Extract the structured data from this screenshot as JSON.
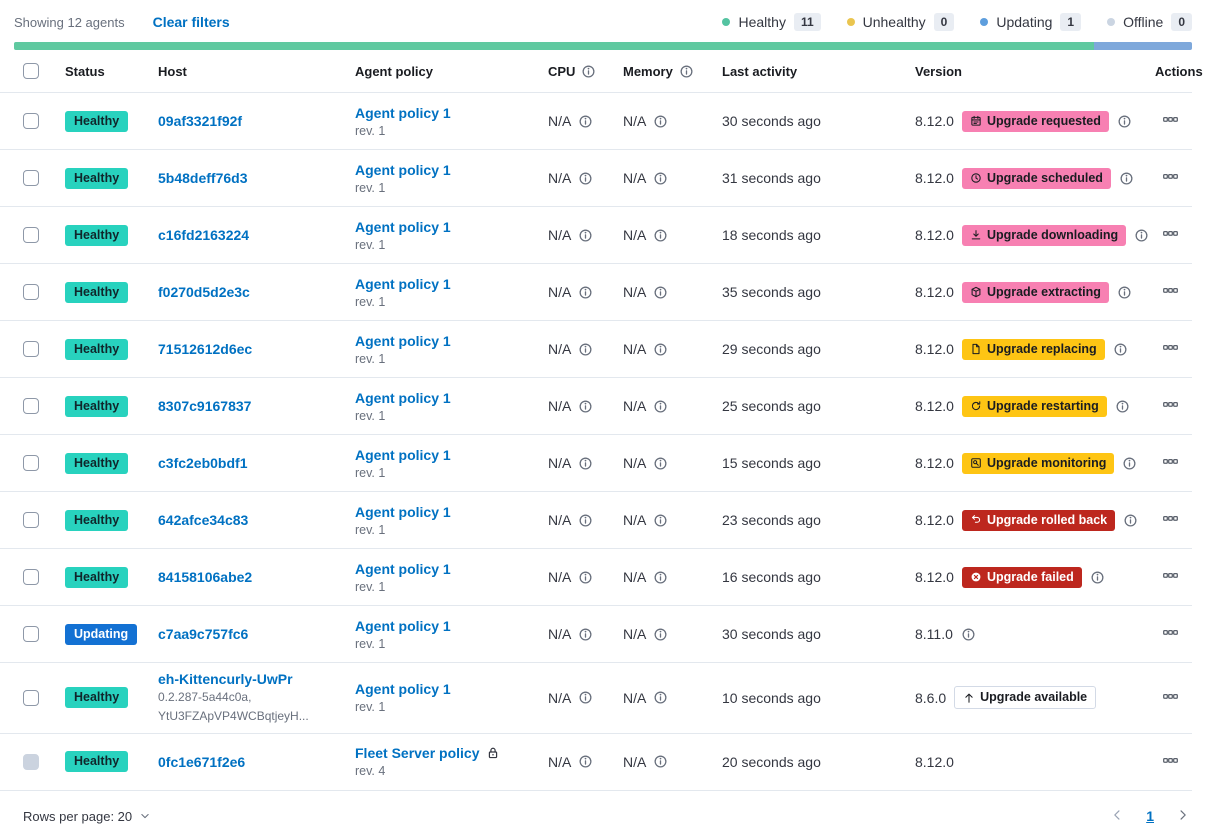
{
  "toolbar": {
    "showing": "Showing 12 agents",
    "clear_filters": "Clear filters",
    "legend": [
      {
        "label": "Healthy",
        "count": "11",
        "color": "#54C3A1"
      },
      {
        "label": "Unhealthy",
        "count": "0",
        "color": "#EAC54F"
      },
      {
        "label": "Updating",
        "count": "1",
        "color": "#5E9EDD"
      },
      {
        "label": "Offline",
        "count": "0",
        "color": "#CBD5E2"
      }
    ]
  },
  "healthbar": {
    "segments": [
      {
        "status": "healthy",
        "color": "#5FC9A0",
        "fraction": 0.917
      },
      {
        "status": "updating",
        "color": "#7EA8DB",
        "fraction": 0.083
      }
    ]
  },
  "table": {
    "headers": {
      "status": "Status",
      "host": "Host",
      "policy": "Agent policy",
      "cpu": "CPU",
      "memory": "Memory",
      "last_activity": "Last activity",
      "version": "Version",
      "actions": "Actions"
    },
    "rows": [
      {
        "status": "Healthy",
        "status_variant": "healthy",
        "host": "09af3321f92f",
        "host_sub": [],
        "policy": "Agent policy 1",
        "policy_rev": "rev. 1",
        "policy_locked": false,
        "cpu": "N/A",
        "memory": "N/A",
        "last_activity": "30 seconds ago",
        "version": "8.12.0",
        "version_info": false,
        "checkbox_disabled": false,
        "upgrade": {
          "label": "Upgrade requested",
          "variant": "accent",
          "icon": "calendar-icon",
          "info": true
        }
      },
      {
        "status": "Healthy",
        "status_variant": "healthy",
        "host": "5b48deff76d3",
        "host_sub": [],
        "policy": "Agent policy 1",
        "policy_rev": "rev. 1",
        "policy_locked": false,
        "cpu": "N/A",
        "memory": "N/A",
        "last_activity": "31 seconds ago",
        "version": "8.12.0",
        "version_info": false,
        "checkbox_disabled": false,
        "upgrade": {
          "label": "Upgrade scheduled",
          "variant": "accent",
          "icon": "clock-icon",
          "info": true
        }
      },
      {
        "status": "Healthy",
        "status_variant": "healthy",
        "host": "c16fd2163224",
        "host_sub": [],
        "policy": "Agent policy 1",
        "policy_rev": "rev. 1",
        "policy_locked": false,
        "cpu": "N/A",
        "memory": "N/A",
        "last_activity": "18 seconds ago",
        "version": "8.12.0",
        "version_info": false,
        "checkbox_disabled": false,
        "upgrade": {
          "label": "Upgrade downloading",
          "variant": "accent",
          "icon": "download-icon",
          "info": true
        }
      },
      {
        "status": "Healthy",
        "status_variant": "healthy",
        "host": "f0270d5d2e3c",
        "host_sub": [],
        "policy": "Agent policy 1",
        "policy_rev": "rev. 1",
        "policy_locked": false,
        "cpu": "N/A",
        "memory": "N/A",
        "last_activity": "35 seconds ago",
        "version": "8.12.0",
        "version_info": false,
        "checkbox_disabled": false,
        "upgrade": {
          "label": "Upgrade extracting",
          "variant": "accent",
          "icon": "package-icon",
          "info": true
        }
      },
      {
        "status": "Healthy",
        "status_variant": "healthy",
        "host": "71512612d6ec",
        "host_sub": [],
        "policy": "Agent policy 1",
        "policy_rev": "rev. 1",
        "policy_locked": false,
        "cpu": "N/A",
        "memory": "N/A",
        "last_activity": "29 seconds ago",
        "version": "8.12.0",
        "version_info": false,
        "checkbox_disabled": false,
        "upgrade": {
          "label": "Upgrade replacing",
          "variant": "warning",
          "icon": "document-icon",
          "info": true
        }
      },
      {
        "status": "Healthy",
        "status_variant": "healthy",
        "host": "8307c9167837",
        "host_sub": [],
        "policy": "Agent policy 1",
        "policy_rev": "rev. 1",
        "policy_locked": false,
        "cpu": "N/A",
        "memory": "N/A",
        "last_activity": "25 seconds ago",
        "version": "8.12.0",
        "version_info": false,
        "checkbox_disabled": false,
        "upgrade": {
          "label": "Upgrade restarting",
          "variant": "warning",
          "icon": "refresh-icon",
          "info": true
        }
      },
      {
        "status": "Healthy",
        "status_variant": "healthy",
        "host": "c3fc2eb0bdf1",
        "host_sub": [],
        "policy": "Agent policy 1",
        "policy_rev": "rev. 1",
        "policy_locked": false,
        "cpu": "N/A",
        "memory": "N/A",
        "last_activity": "15 seconds ago",
        "version": "8.12.0",
        "version_info": false,
        "checkbox_disabled": false,
        "upgrade": {
          "label": "Upgrade monitoring",
          "variant": "warning",
          "icon": "inspect-icon",
          "info": true
        }
      },
      {
        "status": "Healthy",
        "status_variant": "healthy",
        "host": "642afce34c83",
        "host_sub": [],
        "policy": "Agent policy 1",
        "policy_rev": "rev. 1",
        "policy_locked": false,
        "cpu": "N/A",
        "memory": "N/A",
        "last_activity": "23 seconds ago",
        "version": "8.12.0",
        "version_info": false,
        "checkbox_disabled": false,
        "upgrade": {
          "label": "Upgrade rolled back",
          "variant": "danger",
          "icon": "return-icon",
          "info": true
        }
      },
      {
        "status": "Healthy",
        "status_variant": "healthy",
        "host": "84158106abe2",
        "host_sub": [],
        "policy": "Agent policy 1",
        "policy_rev": "rev. 1",
        "policy_locked": false,
        "cpu": "N/A",
        "memory": "N/A",
        "last_activity": "16 seconds ago",
        "version": "8.12.0",
        "version_info": false,
        "checkbox_disabled": false,
        "upgrade": {
          "label": "Upgrade failed",
          "variant": "danger",
          "icon": "error-icon",
          "info": true
        }
      },
      {
        "status": "Updating",
        "status_variant": "updating",
        "host": "c7aa9c757fc6",
        "host_sub": [],
        "policy": "Agent policy 1",
        "policy_rev": "rev. 1",
        "policy_locked": false,
        "cpu": "N/A",
        "memory": "N/A",
        "last_activity": "30 seconds ago",
        "version": "8.11.0",
        "version_info": true,
        "checkbox_disabled": false,
        "upgrade": null
      },
      {
        "status": "Healthy",
        "status_variant": "healthy",
        "host": "eh-Kittencurly-UwPr",
        "host_sub": [
          "0.2.287-5a44c0a,",
          "YtU3FZApVP4WCBqtjeyH..."
        ],
        "policy": "Agent policy 1",
        "policy_rev": "rev. 1",
        "policy_locked": false,
        "cpu": "N/A",
        "memory": "N/A",
        "last_activity": "10 seconds ago",
        "version": "8.6.0",
        "version_info": false,
        "checkbox_disabled": false,
        "upgrade": {
          "label": "Upgrade available",
          "variant": "hollow",
          "icon": "up-arrow-icon",
          "info": false
        }
      },
      {
        "status": "Healthy",
        "status_variant": "healthy",
        "host": "0fc1e671f2e6",
        "host_sub": [],
        "policy": "Fleet Server policy",
        "policy_rev": "rev. 4",
        "policy_locked": true,
        "cpu": "N/A",
        "memory": "N/A",
        "last_activity": "20 seconds ago",
        "version": "8.12.0",
        "version_info": false,
        "checkbox_disabled": true,
        "upgrade": null
      }
    ]
  },
  "footer": {
    "rows_per_page": "Rows per page: 20",
    "page": "1"
  }
}
